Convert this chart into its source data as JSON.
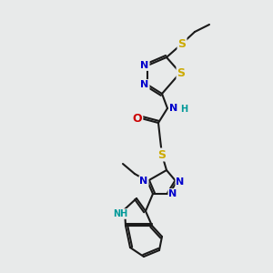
{
  "background_color": "#e8eaea",
  "bond_color": "#1a1a1a",
  "bond_width": 1.5,
  "atom_colors": {
    "N": "#0000cc",
    "S": "#ccaa00",
    "O": "#cc0000",
    "C": "#1a1a1a",
    "H": "#009999"
  },
  "font_size_atom": 8,
  "figsize": [
    3.0,
    3.0
  ],
  "dpi": 100
}
